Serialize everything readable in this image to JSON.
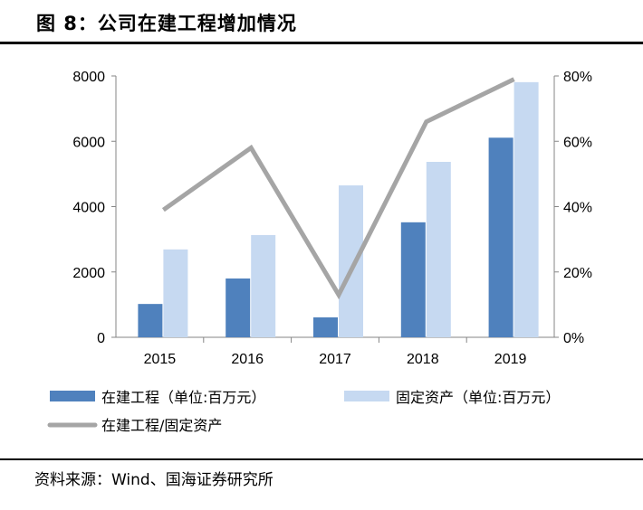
{
  "title": "图 8：公司在建工程增加情况",
  "source": "资料来源：Wind、国海证券研究所",
  "chart_data": {
    "type": "bar+line",
    "categories": [
      "2015",
      "2016",
      "2017",
      "2018",
      "2019"
    ],
    "series": [
      {
        "name": "在建工程（单位:百万元）",
        "type": "bar",
        "axis": "left",
        "color": "#4f81bd",
        "values": [
          1020,
          1800,
          610,
          3520,
          6110
        ]
      },
      {
        "name": "固定资产（单位:百万元）",
        "type": "bar",
        "axis": "left",
        "color": "#c6d9f1",
        "values": [
          2690,
          3130,
          4650,
          5370,
          7810
        ]
      },
      {
        "name": "在建工程/固定资产",
        "type": "line",
        "axis": "right",
        "color": "#a5a5a5",
        "values": [
          39,
          58,
          13,
          66,
          79
        ]
      }
    ],
    "left_axis": {
      "ylim": [
        0,
        8000
      ],
      "ticks": [
        "0",
        "2000",
        "4000",
        "6000",
        "8000"
      ]
    },
    "right_axis": {
      "ylim": [
        0,
        80
      ],
      "ticks": [
        "0%",
        "20%",
        "40%",
        "60%",
        "80%"
      ]
    },
    "grid": false,
    "legend": "bottom"
  }
}
